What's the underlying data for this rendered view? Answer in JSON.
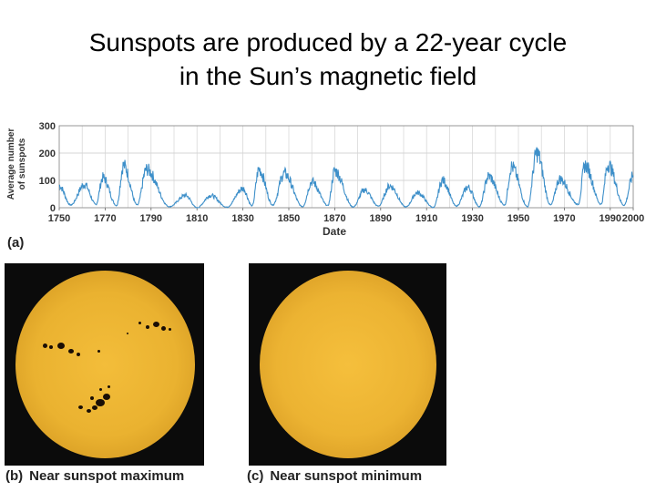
{
  "title": {
    "line1": "Sunspots are produced by a 22-year cycle",
    "line2": "in the Sun’s magnetic field"
  },
  "panels": {
    "a": {
      "letter": "(a)"
    },
    "b": {
      "letter": "(b)",
      "caption": "Near sunspot maximum"
    },
    "c": {
      "letter": "(c)",
      "caption": "Near sunspot minimum"
    }
  },
  "chart_data": {
    "type": "line",
    "title": "",
    "xlabel": "Date",
    "ylabel_line1": "Average number",
    "ylabel_line2": "of sunspots",
    "xlim": [
      1750,
      2000
    ],
    "ylim": [
      0,
      300
    ],
    "x_ticks": [
      "1750",
      "1770",
      "1790",
      "1810",
      "1830",
      "1850",
      "1870",
      "1890",
      "1910",
      "1930",
      "1950",
      "1970",
      "1990",
      "2000"
    ],
    "y_ticks": [
      "0",
      "100",
      "200",
      "300"
    ],
    "grid": true,
    "line_color": "#3d8fc9",
    "series": [
      {
        "name": "",
        "x": [
          1750,
          1755,
          1761,
          1766,
          1769,
          1775,
          1778,
          1784,
          1788,
          1798,
          1805,
          1810,
          1816,
          1823,
          1830,
          1834,
          1837,
          1843,
          1848,
          1856,
          1860,
          1867,
          1870,
          1878,
          1883,
          1889,
          1894,
          1901,
          1906,
          1913,
          1917,
          1923,
          1928,
          1933,
          1937,
          1944,
          1947,
          1954,
          1958,
          1964,
          1968,
          1976,
          1979,
          1986,
          1989,
          1996,
          2000
        ],
        "y": [
          80,
          10,
          85,
          12,
          110,
          8,
          155,
          10,
          140,
          4,
          45,
          0,
          45,
          2,
          70,
          7,
          140,
          10,
          125,
          4,
          95,
          8,
          135,
          3,
          65,
          6,
          80,
          3,
          55,
          1,
          100,
          6,
          75,
          4,
          115,
          10,
          150,
          4,
          200,
          10,
          105,
          12,
          155,
          13,
          158,
          9,
          118
        ]
      }
    ]
  }
}
